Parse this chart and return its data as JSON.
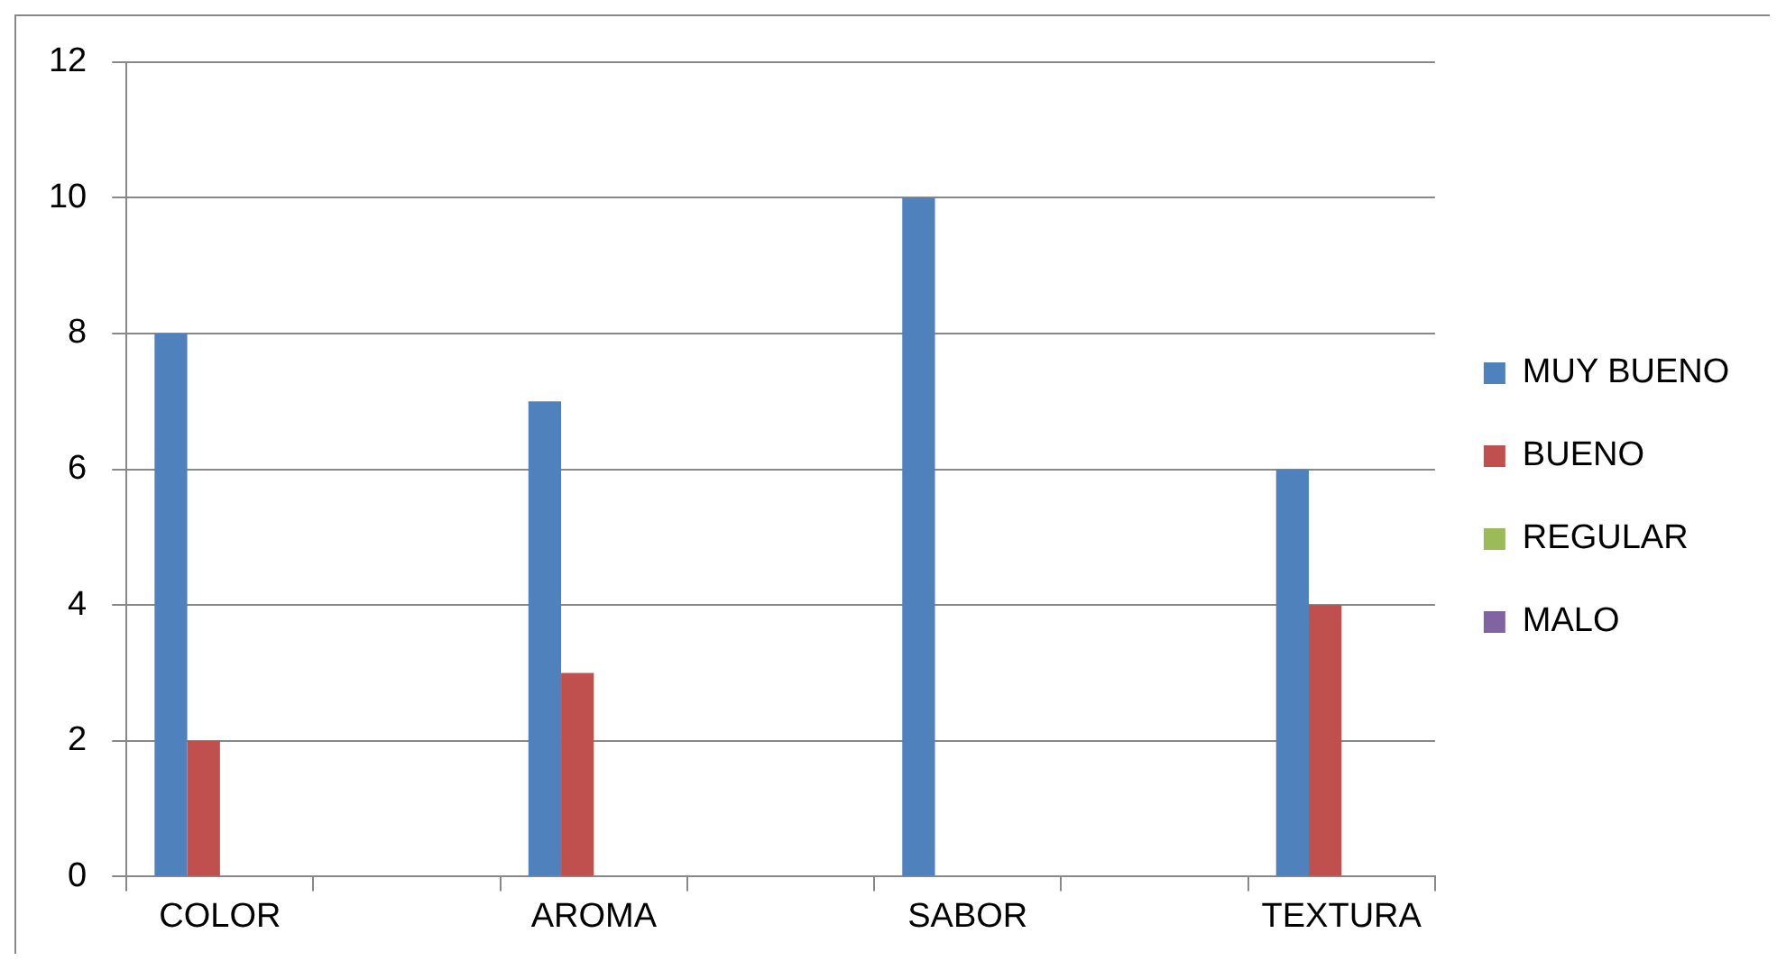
{
  "chart_data": {
    "type": "bar",
    "categories": [
      "COLOR",
      null,
      "AROMA",
      null,
      "SABOR",
      null,
      "TEXTURA"
    ],
    "series": [
      {
        "name": "MUY BUENO",
        "color": "#4f81bd",
        "values": [
          8,
          null,
          7,
          null,
          10,
          null,
          6
        ]
      },
      {
        "name": "BUENO",
        "color": "#c0504d",
        "values": [
          2,
          null,
          3,
          null,
          0,
          null,
          4
        ]
      },
      {
        "name": "REGULAR",
        "color": "#9bbb59",
        "values": [
          0,
          null,
          0,
          null,
          0,
          null,
          0
        ]
      },
      {
        "name": "MALO",
        "color": "#8064a2",
        "values": [
          0,
          null,
          0,
          null,
          0,
          null,
          0
        ]
      }
    ],
    "ylim": [
      0,
      12
    ],
    "yticks": [
      0,
      2,
      4,
      6,
      8,
      10,
      12
    ],
    "grid": "y",
    "legend": "right"
  }
}
